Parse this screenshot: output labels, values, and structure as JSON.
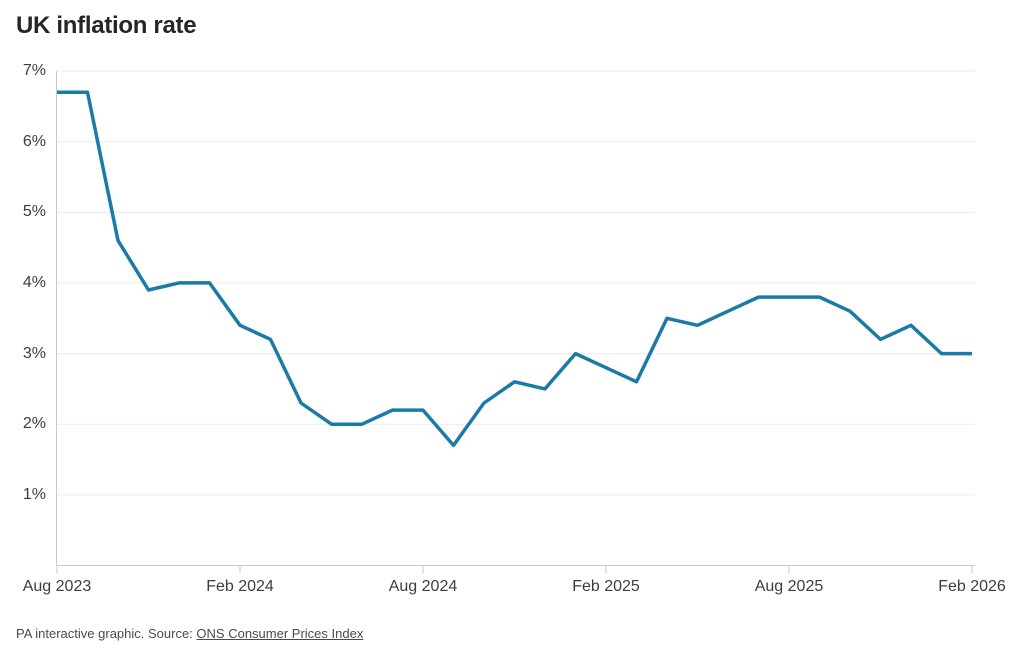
{
  "header": {
    "title": "UK inflation rate"
  },
  "chart_data": {
    "type": "line",
    "title": "UK inflation rate",
    "unit": "%",
    "categories": [
      "Aug 2023",
      "Sep 2023",
      "Oct 2023",
      "Nov 2023",
      "Dec 2023",
      "Jan 2024",
      "Feb 2024",
      "Mar 2024",
      "Apr 2024",
      "May 2024",
      "Jun 2024",
      "Jul 2024",
      "Aug 2024",
      "Sep 2024",
      "Oct 2024",
      "Nov 2024",
      "Dec 2024",
      "Jan 2025",
      "Feb 2025",
      "Mar 2025",
      "Apr 2025",
      "May 2025",
      "Jun 2025",
      "Jul 2025",
      "Aug 2025",
      "Sep 2025",
      "Oct 2025",
      "Nov 2025",
      "Dec 2025",
      "Jan 2026",
      "Feb 2026"
    ],
    "values": [
      6.7,
      6.7,
      4.6,
      3.9,
      4.0,
      4.0,
      3.4,
      3.2,
      2.3,
      2.0,
      2.0,
      2.2,
      2.2,
      1.7,
      2.3,
      2.6,
      2.5,
      3.0,
      2.8,
      2.6,
      3.5,
      3.4,
      3.6,
      3.8,
      3.8,
      3.8,
      3.6,
      3.2,
      3.4,
      3.0,
      3.0
    ],
    "ylim": [
      0,
      7
    ],
    "y_ticks": [
      {
        "value": 1,
        "label": "1%"
      },
      {
        "value": 2,
        "label": "2%"
      },
      {
        "value": 3,
        "label": "3%"
      },
      {
        "value": 4,
        "label": "4%"
      },
      {
        "value": 5,
        "label": "5%"
      },
      {
        "value": 6,
        "label": "6%"
      },
      {
        "value": 7,
        "label": "7%"
      }
    ],
    "x_ticks": [
      {
        "index": 0,
        "label": "Aug 2023"
      },
      {
        "index": 6,
        "label": "Feb 2024"
      },
      {
        "index": 12,
        "label": "Aug 2024"
      },
      {
        "index": 18,
        "label": "Feb 2025"
      },
      {
        "index": 24,
        "label": "Aug 2025"
      },
      {
        "index": 30,
        "label": "Feb 2026"
      }
    ],
    "grid": "horizontal",
    "legend": "none",
    "line_color": "#1b7aa6",
    "grid_color": "#ebebeb",
    "axis_color": "#c9c9c9",
    "label_color": "#3d3d3d"
  },
  "footer": {
    "prefix": "PA interactive graphic. Source: ",
    "link_text": "ONS Consumer Prices Index"
  }
}
